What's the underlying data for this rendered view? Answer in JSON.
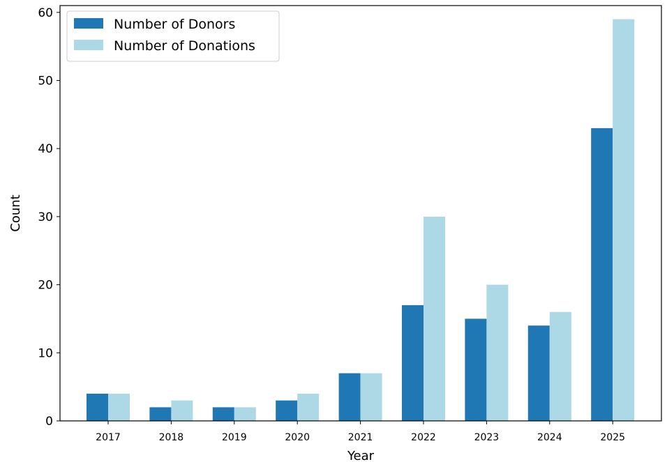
{
  "chart_data": {
    "type": "bar",
    "xlabel": "Year",
    "ylabel": "Count",
    "categories": [
      "2017",
      "2018",
      "2019",
      "2020",
      "2021",
      "2022",
      "2023",
      "2024",
      "2025"
    ],
    "ylim": [
      0,
      61
    ],
    "yticks": [
      "0",
      "10",
      "20",
      "30",
      "40",
      "50",
      "60"
    ],
    "grid": false,
    "legend_position": "top-left",
    "series": [
      {
        "name": "Number of Donors",
        "color": "#1f77b4",
        "values": [
          4,
          2,
          2,
          3,
          7,
          17,
          15,
          14,
          43
        ]
      },
      {
        "name": "Number of Donations",
        "color": "#add8e6",
        "values": [
          4,
          3,
          2,
          4,
          7,
          30,
          20,
          16,
          59
        ]
      }
    ]
  }
}
